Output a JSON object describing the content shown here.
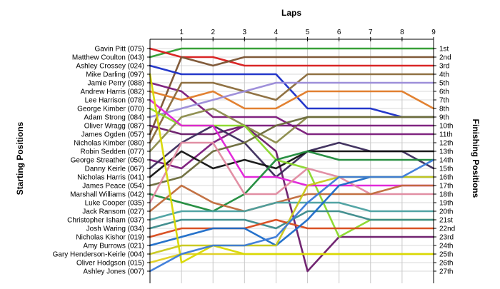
{
  "chart_data": {
    "type": "line",
    "title": "Laps",
    "ylabel_left": "Starting Positions",
    "ylabel_right": "Finishing Positions",
    "x": [
      0,
      1,
      2,
      3,
      4,
      5,
      6,
      7,
      8,
      9
    ],
    "xtick_labels": [
      "1",
      "2",
      "3",
      "4",
      "5",
      "6",
      "7",
      "8",
      "9"
    ],
    "starting_labels": [
      "Gavin Pitt (075)",
      "Matthew Coulton (043)",
      "Ashley Crossey (024)",
      "Mike Darling (097)",
      "Jamie Perry (088)",
      "Andrew Harris (082)",
      "Lee Harrison (078)",
      "George Kimber (070)",
      "Adam Strong (084)",
      "Oliver Wragg (087)",
      "James Ogden (057)",
      "Nicholas Kimber (080)",
      "Robin Sedden (077)",
      "George Streather (050)",
      "Danny Keirle (067)",
      "Nicholas Harris (041)",
      "James Peace (054)",
      "Marshall Williams (042)",
      "Luke Cooper (035)",
      "Jack Ransom (027)",
      "Christopher Isham (037)",
      "Josh Waring (034)",
      "Nicholas Kishor (019)",
      "Amy Burrows (021)",
      "Gary Henderson-Keirle (004)",
      "Oliver Hodgson (015)",
      "Ashley Jones (007)"
    ],
    "finishing_labels": [
      "1st",
      "2nd",
      "3rd",
      "4th",
      "5th",
      "6th",
      "7th",
      "8th",
      "9th",
      "10th",
      "11th",
      "12th",
      "13th",
      "14th",
      "15th",
      "16th",
      "17th",
      "18th",
      "19th",
      "20th",
      "21st",
      "22nd",
      "23rd",
      "24th",
      "25th",
      "26th",
      "27th"
    ],
    "ylim": [
      1,
      27
    ],
    "grid": true,
    "series": [
      {
        "values": [
          2,
          1,
          1,
          1,
          1,
          1,
          1,
          1,
          1,
          1
        ],
        "color": "#2e9c2e"
      },
      {
        "values": [
          1,
          2,
          2,
          3,
          3,
          3,
          3,
          3,
          3,
          3
        ],
        "color": "#d81b1b"
      },
      {
        "values": [
          11,
          2,
          3,
          2,
          2,
          2,
          2,
          2,
          2,
          2
        ],
        "color": "#7a5230"
      },
      {
        "values": [
          3,
          4,
          4,
          4,
          4,
          8,
          8,
          8,
          9,
          9
        ],
        "color": "#1a2ec8"
      },
      {
        "values": [
          5,
          6,
          9,
          9,
          9,
          11,
          11,
          11,
          11,
          11
        ],
        "color": "#7a1a7a"
      },
      {
        "values": [
          6,
          7,
          6,
          8,
          8,
          6,
          6,
          6,
          6,
          8
        ],
        "color": "#e07a26"
      },
      {
        "values": [
          12,
          5,
          5,
          6,
          7,
          4,
          4,
          4,
          4,
          4
        ],
        "color": "#8a6a3a"
      },
      {
        "values": [
          9,
          8,
          7,
          6,
          5,
          5,
          5,
          5,
          5,
          5
        ],
        "color": "#9a8ad8"
      },
      {
        "values": [
          10,
          11,
          11,
          10,
          13,
          27,
          23,
          23,
          23,
          23
        ],
        "color": "#6a1a6a"
      },
      {
        "values": [
          13,
          9,
          8,
          10,
          12,
          9,
          9,
          9,
          9,
          9
        ],
        "color": "#8b8b4a"
      },
      {
        "values": [
          14,
          15,
          12,
          10,
          10,
          10,
          10,
          10,
          10,
          10
        ],
        "color": "#7a1a7a"
      },
      {
        "values": [
          15,
          12,
          10,
          12,
          16,
          13,
          12,
          13,
          13,
          15
        ],
        "color": "#3a2a5a"
      },
      {
        "values": [
          16,
          13,
          15,
          14,
          15,
          13,
          13,
          13,
          13,
          13
        ],
        "color": "#111111"
      },
      {
        "values": [
          8,
          10,
          10,
          10,
          14,
          15,
          23,
          21,
          21,
          21
        ],
        "color": "#8ad82a"
      },
      {
        "values": [
          7,
          10,
          10,
          16,
          16,
          17,
          17,
          17,
          17,
          17
        ],
        "color": "#e020d8"
      },
      {
        "values": [
          17,
          16,
          13,
          12,
          10,
          9,
          9,
          9,
          9,
          9
        ],
        "color": "#6a6a3a"
      },
      {
        "values": [
          18,
          19,
          20,
          18,
          14,
          13,
          14,
          14,
          14,
          14
        ],
        "color": "#1e8a3a"
      },
      {
        "values": [
          19,
          12,
          12,
          18,
          18,
          15,
          16,
          18,
          18,
          18
        ],
        "color": "#e08aa0"
      },
      {
        "values": [
          20,
          17,
          19,
          20,
          19,
          18,
          18,
          18,
          17,
          17
        ],
        "color": "#c06a3a"
      },
      {
        "values": [
          21,
          20,
          20,
          20,
          19,
          19,
          19,
          20,
          20,
          20
        ],
        "color": "#4aa0a0"
      },
      {
        "values": [
          22,
          21,
          21,
          21,
          22,
          20,
          20,
          21,
          21,
          21
        ],
        "color": "#3a8a8a"
      },
      {
        "values": [
          23,
          22,
          22,
          22,
          21,
          22,
          22,
          22,
          22,
          22
        ],
        "color": "#d84a1a"
      },
      {
        "values": [
          24,
          23,
          22,
          22,
          24,
          21,
          17,
          16,
          16,
          16
        ],
        "color": "#1a6ac8"
      },
      {
        "values": [
          25,
          24,
          24,
          24,
          24,
          17,
          16,
          16,
          16,
          16
        ],
        "color": "#c8c81a"
      },
      {
        "values": [
          26,
          25,
          25,
          25,
          25,
          25,
          25,
          25,
          25,
          25
        ],
        "color": "#e0d020"
      },
      {
        "values": [
          4,
          26,
          24,
          25,
          25,
          25,
          25,
          25,
          25,
          25
        ],
        "color": "#d8d800"
      },
      {
        "values": [
          27,
          25,
          24,
          24,
          23,
          19,
          16,
          16,
          16,
          14
        ],
        "color": "#3a7ad8"
      }
    ]
  }
}
